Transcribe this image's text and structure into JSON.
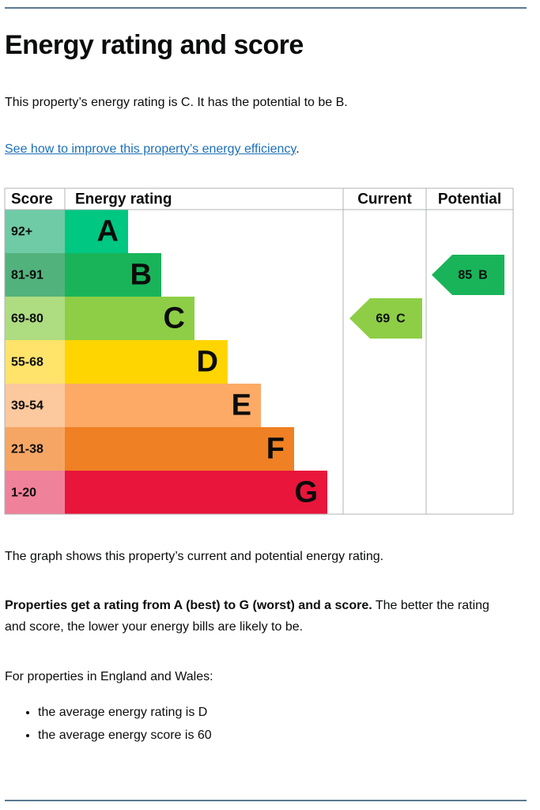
{
  "header": {
    "title": "Energy rating and score"
  },
  "intro": "This property’s energy rating is C. It has the potential to be B.",
  "link": {
    "text": "See how to improve this property’s energy efficiency",
    "suffix": "."
  },
  "table": {
    "headers": [
      "Score",
      "Energy rating",
      "Current",
      "Potential"
    ],
    "bands": [
      {
        "score": "92+",
        "letter": "A",
        "color": "#00c781",
        "score_color": "#6fcaa6"
      },
      {
        "score": "81-91",
        "letter": "B",
        "color": "#19b459",
        "score_color": "#52b27c"
      },
      {
        "score": "69-80",
        "letter": "C",
        "color": "#8dce46",
        "score_color": "#aedc80"
      },
      {
        "score": "55-68",
        "letter": "D",
        "color": "#ffd500",
        "score_color": "#ffe36a"
      },
      {
        "score": "39-54",
        "letter": "E",
        "color": "#fcaa65",
        "score_color": "#fcc89d"
      },
      {
        "score": "21-38",
        "letter": "F",
        "color": "#ef8023",
        "score_color": "#f5a664"
      },
      {
        "score": "1-20",
        "letter": "G",
        "color": "#e9153b",
        "score_color": "#f0819a"
      }
    ],
    "current": {
      "score": 69,
      "letter": "C"
    },
    "potential": {
      "score": 85,
      "letter": "B"
    }
  },
  "caption": "The graph shows this property’s current and potential energy rating.",
  "note": {
    "bold": "Properties get a rating from A (best) to G (worst) and a score.",
    "text": " The better the rating and score, the lower your energy bills are likely to be."
  },
  "region_note": "For properties in England and Wales:",
  "bullets": [
    "the average energy rating is D",
    "the average energy score is 60"
  ]
}
